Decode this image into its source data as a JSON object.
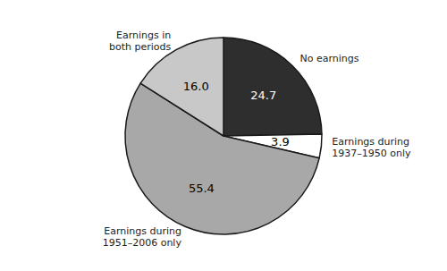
{
  "chart_data": {
    "type": "pie",
    "categories": [
      "No earnings",
      "Earnings during\n1937–1950 only",
      "Earnings during\n1951–2006 only",
      "Earnings in\nboth periods"
    ],
    "values": [
      24.7,
      3.9,
      55.4,
      16.0
    ],
    "value_labels": [
      "24.7",
      "3.9",
      "55.4",
      "16.0"
    ],
    "colors": [
      "#2e2e2e",
      "#ffffff",
      "#a8a8a8",
      "#c8c8c8"
    ],
    "data_labels": true
  }
}
